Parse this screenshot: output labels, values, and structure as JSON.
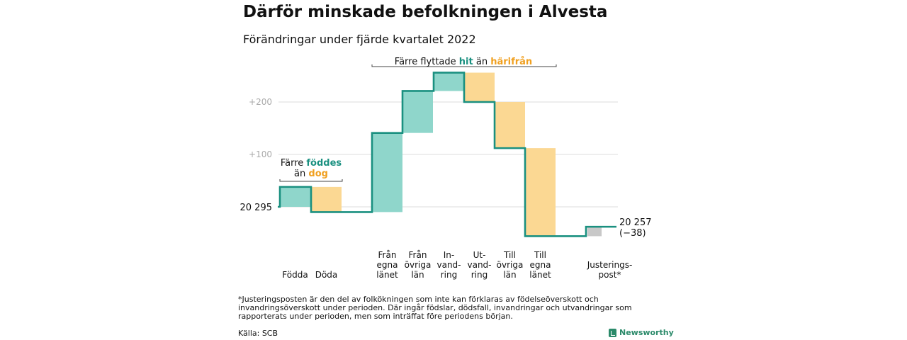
{
  "title": "Därför minskade befolkningen i Alvesta",
  "subtitle": "Förändringar under fjärde kvartalet 2022",
  "chart_data": {
    "type": "waterfall",
    "title": "Därför minskade befolkningen i Alvesta",
    "subtitle": "Förändringar under fjärde kvartalet 2022",
    "start_value": 20295,
    "start_label": "20 295",
    "end_value": 20257,
    "end_label": "20 257",
    "end_change_label": "(−38)",
    "y_ticks": [
      {
        "value": 20395,
        "label": "+100"
      },
      {
        "value": 20495,
        "label": "+200"
      }
    ],
    "steps": [
      {
        "label": [
          "Födda"
        ],
        "change": 38,
        "kind": "inflow"
      },
      {
        "label": [
          "Döda"
        ],
        "change": -48,
        "kind": "outflow"
      },
      {
        "label": [
          "Från",
          "egna",
          "länet"
        ],
        "change": 151,
        "kind": "inflow"
      },
      {
        "label": [
          "Från",
          "övriga",
          "län"
        ],
        "change": 80,
        "kind": "inflow"
      },
      {
        "label": [
          "In-",
          "vand-",
          "ring"
        ],
        "change": 35,
        "kind": "inflow"
      },
      {
        "label": [
          "Ut-",
          "vand-",
          "ring"
        ],
        "change": -56,
        "kind": "outflow"
      },
      {
        "label": [
          "Till",
          "övriga",
          "län"
        ],
        "change": -88,
        "kind": "outflow"
      },
      {
        "label": [
          "Till",
          "egna",
          "länet"
        ],
        "change": -168,
        "kind": "outflow"
      },
      {
        "label": [
          "Justerings-",
          "post*"
        ],
        "change": 18,
        "kind": "adjustment"
      }
    ],
    "annotations": [
      {
        "group": "births",
        "parts": [
          {
            "text": "Färre ",
            "style": "plain"
          },
          {
            "text": "föddes",
            "style": "in"
          },
          {
            "text": "än ",
            "style": "plain",
            "newline": true
          },
          {
            "text": "dog",
            "style": "out"
          }
        ]
      },
      {
        "group": "migration",
        "parts": [
          {
            "text": "Färre flyttade ",
            "style": "plain"
          },
          {
            "text": "hit",
            "style": "in"
          },
          {
            "text": " än ",
            "style": "plain"
          },
          {
            "text": "härifrån",
            "style": "out"
          }
        ]
      }
    ],
    "colors": {
      "inflow": "#8fd6cb",
      "outflow": "#fbd893",
      "adjustment": "#c8c8c8",
      "line": "#1a9080",
      "in_text": "#1a9080",
      "out_text": "#f0a020",
      "grid": "#dddddd",
      "tick_text": "#aaaaaa"
    }
  },
  "footnote": "*Justeringsposten är den del av folkökningen som inte kan förklaras av födelseöverskott och invandringsöverskott under perioden. Där ingår födslar, dödsfall, invandringar och utvandringar som rapporterats under perioden, men som inträffat före periodens början.",
  "source": "Källa: SCB",
  "brand": "Newsworthy"
}
